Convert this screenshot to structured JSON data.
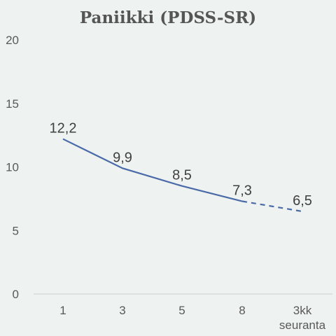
{
  "chart_data": {
    "type": "line",
    "title": "Paniikki (PDSS-SR)",
    "xlabel": "",
    "ylabel": "",
    "categories": [
      "1",
      "3",
      "5",
      "8",
      "3kk seuranta"
    ],
    "category_lines": [
      [
        "1"
      ],
      [
        "3"
      ],
      [
        "5"
      ],
      [
        "8"
      ],
      [
        "3kk",
        "seuranta"
      ]
    ],
    "values": [
      12.2,
      9.9,
      8.5,
      7.3,
      6.5
    ],
    "data_labels": [
      "12,2",
      "9,9",
      "8,5",
      "7,3",
      "6,5"
    ],
    "yticks": [
      0,
      5,
      10,
      15,
      20
    ],
    "ylim": [
      0,
      20
    ],
    "dashed_from_index": 3,
    "grid": false,
    "line_color": "#4a6aa8"
  }
}
